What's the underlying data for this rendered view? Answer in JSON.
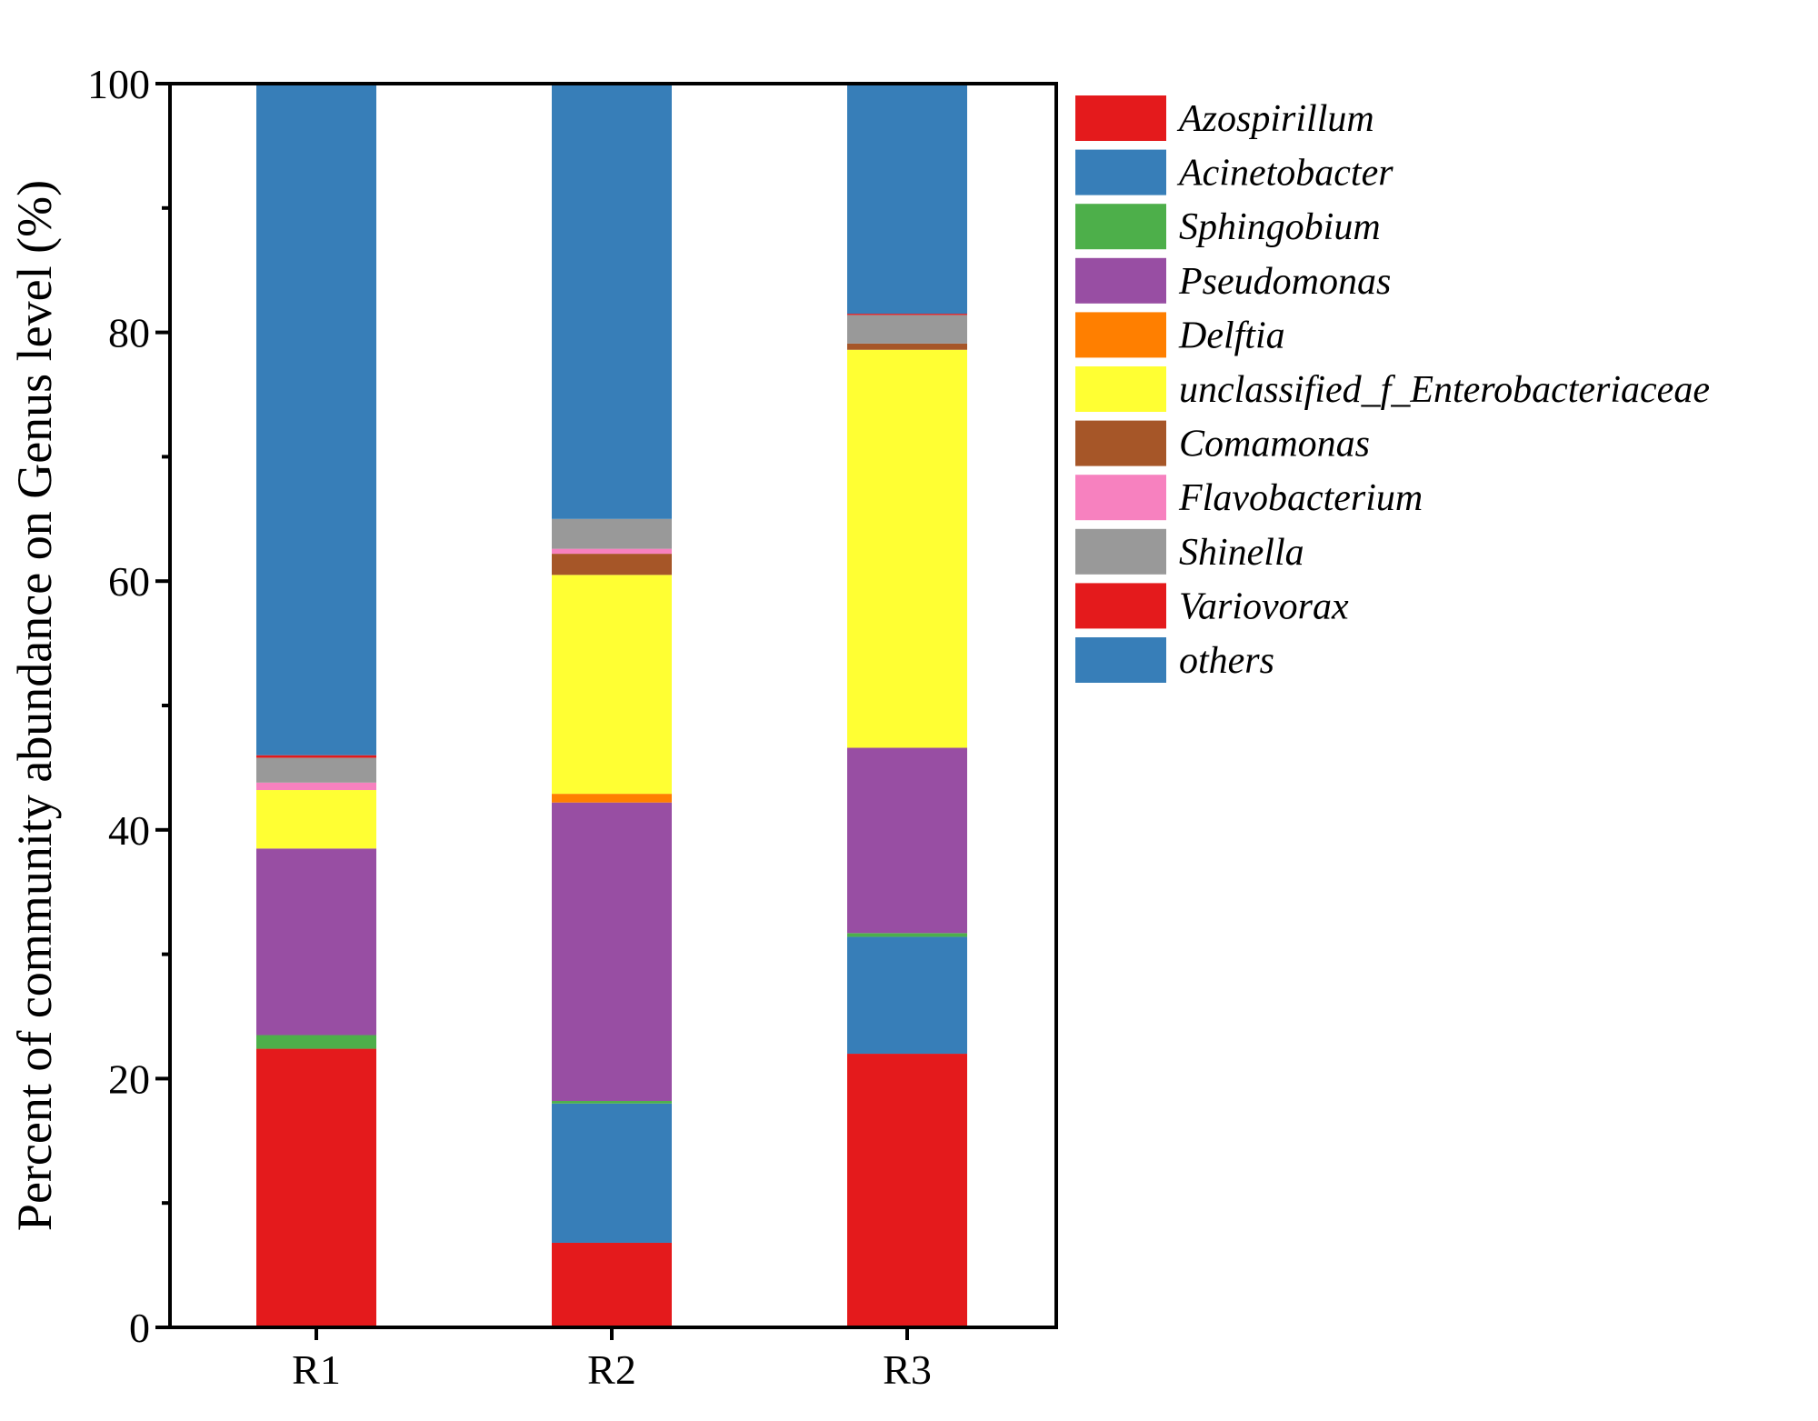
{
  "chart_data": {
    "type": "bar",
    "stacked": true,
    "categories": [
      "R1",
      "R2",
      "R3"
    ],
    "ylabel": "Percent of community abundance on Genus level (%)",
    "xlabel": "",
    "ylim": [
      0,
      100
    ],
    "yticks": [
      "0",
      "20",
      "40",
      "60",
      "80",
      "100"
    ],
    "grid": false,
    "legend_position": "right",
    "series": [
      {
        "name": "Azospirillum",
        "color": "#e41a1c",
        "values": [
          22.4,
          6.8,
          22.0
        ]
      },
      {
        "name": "Acinetobacter",
        "color": "#377eb8",
        "values": [
          0.0,
          11.2,
          9.4
        ]
      },
      {
        "name": "Sphingobium",
        "color": "#4daf4a",
        "values": [
          1.1,
          0.2,
          0.3
        ]
      },
      {
        "name": "Pseudomonas",
        "color": "#984ea3",
        "values": [
          15.0,
          24.0,
          14.9
        ]
      },
      {
        "name": "Delftia",
        "color": "#ff7f00",
        "values": [
          0.0,
          0.7,
          0.0
        ]
      },
      {
        "name": "unclassified_f_Enterobacteriaceae",
        "color": "#ffff33",
        "values": [
          4.7,
          17.6,
          32.0
        ]
      },
      {
        "name": "Comamonas",
        "color": "#a65628",
        "values": [
          0.0,
          1.7,
          0.5
        ]
      },
      {
        "name": "Flavobacterium",
        "color": "#f781bf",
        "values": [
          0.6,
          0.4,
          0.0
        ]
      },
      {
        "name": "Shinella",
        "color": "#999999",
        "values": [
          2.0,
          2.4,
          2.3
        ]
      },
      {
        "name": "Variovorax",
        "color": "#e41a1c",
        "values": [
          0.2,
          0.0,
          0.1
        ]
      },
      {
        "name": "others",
        "color": "#377eb8",
        "values": [
          54.0,
          35.0,
          18.5
        ]
      }
    ]
  }
}
